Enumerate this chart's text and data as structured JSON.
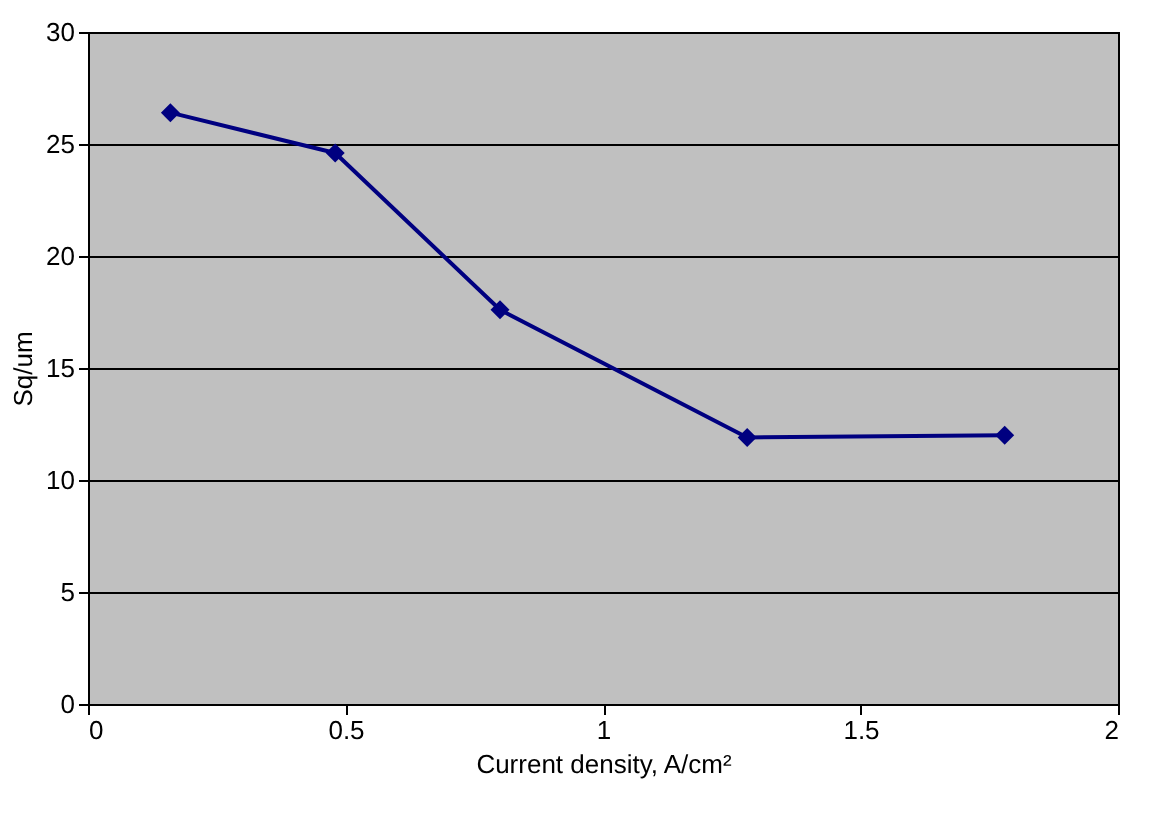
{
  "chart_data": {
    "type": "line",
    "xlabel": "Current density, A/cm²",
    "ylabel": "Sq/um",
    "x": [
      0.16,
      0.48,
      0.8,
      1.28,
      1.78
    ],
    "series": [
      {
        "color": "#000080",
        "values": [
          26.4,
          24.6,
          17.6,
          11.9,
          12.0
        ]
      }
    ],
    "xlim": [
      0,
      2
    ],
    "xticks": [
      0,
      0.5,
      1,
      1.5,
      2
    ],
    "ylim": [
      0,
      30
    ],
    "yticks": [
      0,
      5,
      10,
      15,
      20,
      25,
      30
    ],
    "grid": "y",
    "marker": "diamond",
    "line_style": "solid"
  }
}
